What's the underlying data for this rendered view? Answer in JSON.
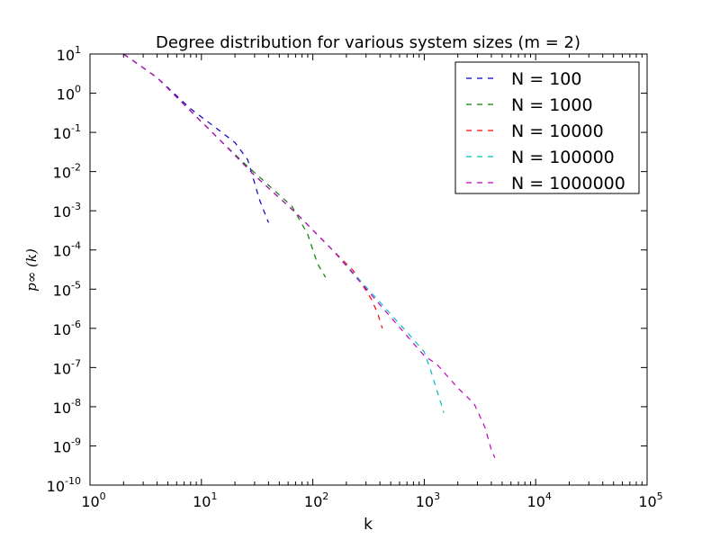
{
  "chart_data": {
    "type": "line",
    "title": "Degree distribution for various system sizes (m = 2)",
    "xlabel": "k",
    "ylabel": "p∞ (k)",
    "xscale": "log",
    "yscale": "log",
    "xlim": [
      1,
      100000
    ],
    "ylim": [
      1e-10,
      10
    ],
    "grid": false,
    "legend_position": "top-right",
    "line_style": "dashed",
    "x_ticks": [
      {
        "base": "10",
        "exp": "0"
      },
      {
        "base": "10",
        "exp": "1"
      },
      {
        "base": "10",
        "exp": "2"
      },
      {
        "base": "10",
        "exp": "3"
      },
      {
        "base": "10",
        "exp": "4"
      },
      {
        "base": "10",
        "exp": "5"
      }
    ],
    "y_ticks": [
      {
        "base": "10",
        "exp": "1"
      },
      {
        "base": "10",
        "exp": "0"
      },
      {
        "base": "10",
        "exp": "-1"
      },
      {
        "base": "10",
        "exp": "-2"
      },
      {
        "base": "10",
        "exp": "-3"
      },
      {
        "base": "10",
        "exp": "-4"
      },
      {
        "base": "10",
        "exp": "-5"
      },
      {
        "base": "10",
        "exp": "-6"
      },
      {
        "base": "10",
        "exp": "-7"
      },
      {
        "base": "10",
        "exp": "-8"
      },
      {
        "base": "10",
        "exp": "-9"
      },
      {
        "base": "10",
        "exp": "-10"
      }
    ],
    "series": [
      {
        "name": "N = 100",
        "color": "#0000bf",
        "points": [
          [
            2,
            10
          ],
          [
            4,
            2.5
          ],
          [
            8,
            0.4
          ],
          [
            14,
            0.12
          ],
          [
            20,
            0.055
          ],
          [
            26,
            0.02
          ],
          [
            28,
            0.01
          ],
          [
            33,
            0.002
          ],
          [
            40,
            0.0005
          ]
        ]
      },
      {
        "name": "N = 1000",
        "color": "#008000",
        "points": [
          [
            2,
            10
          ],
          [
            4,
            2.5
          ],
          [
            8,
            0.35
          ],
          [
            15,
            0.06
          ],
          [
            25,
            0.015
          ],
          [
            40,
            0.0045
          ],
          [
            65,
            0.0013
          ],
          [
            90,
            0.00025
          ],
          [
            110,
            4.5e-05
          ],
          [
            130,
            2e-05
          ]
        ]
      },
      {
        "name": "N = 10000",
        "color": "#ff0000",
        "points": [
          [
            2,
            10
          ],
          [
            4,
            2.5
          ],
          [
            8,
            0.35
          ],
          [
            15,
            0.06
          ],
          [
            30,
            0.008
          ],
          [
            70,
            0.0009
          ],
          [
            130,
            0.00015
          ],
          [
            230,
            3e-05
          ],
          [
            330,
            6e-06
          ],
          [
            380,
            2.5e-06
          ],
          [
            420,
            1e-06
          ]
        ]
      },
      {
        "name": "N = 100000",
        "color": "#00bfbf",
        "points": [
          [
            2,
            10
          ],
          [
            4,
            2.5
          ],
          [
            8,
            0.35
          ],
          [
            15,
            0.06
          ],
          [
            30,
            0.008
          ],
          [
            70,
            0.0009
          ],
          [
            150,
            0.0001
          ],
          [
            350,
            7e-06
          ],
          [
            700,
            8e-07
          ],
          [
            1000,
            2.5e-07
          ],
          [
            1150,
            8e-08
          ],
          [
            1500,
            7e-09
          ]
        ]
      },
      {
        "name": "N = 1000000",
        "color": "#bf00bf",
        "points": [
          [
            2,
            10
          ],
          [
            4,
            2.5
          ],
          [
            8,
            0.35
          ],
          [
            15,
            0.06
          ],
          [
            30,
            0.008
          ],
          [
            70,
            0.0009
          ],
          [
            150,
            0.0001
          ],
          [
            400,
            4e-06
          ],
          [
            1000,
            2e-07
          ],
          [
            1300,
            1.2e-07
          ],
          [
            2000,
            3e-08
          ],
          [
            2800,
            1.2e-08
          ],
          [
            3500,
            3e-09
          ],
          [
            4000,
            8e-10
          ],
          [
            4300,
            5e-10
          ]
        ]
      }
    ]
  }
}
